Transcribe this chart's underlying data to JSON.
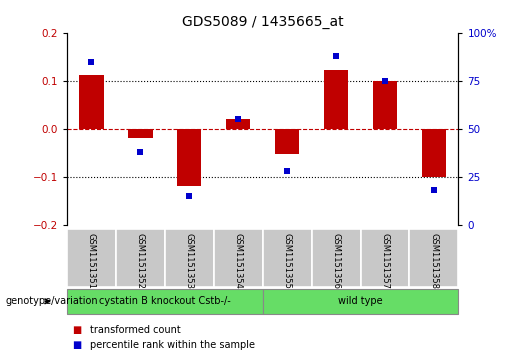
{
  "title": "GDS5089 / 1435665_at",
  "samples": [
    "GSM1151351",
    "GSM1151352",
    "GSM1151353",
    "GSM1151354",
    "GSM1151355",
    "GSM1151356",
    "GSM1151357",
    "GSM1151358"
  ],
  "transformed_count": [
    0.112,
    -0.018,
    -0.118,
    0.02,
    -0.052,
    0.122,
    0.1,
    -0.1
  ],
  "percentile_rank": [
    85,
    38,
    15,
    55,
    28,
    88,
    75,
    18
  ],
  "ylim_left": [
    -0.2,
    0.2
  ],
  "ylim_right": [
    0,
    100
  ],
  "yticks_left": [
    -0.2,
    -0.1,
    0.0,
    0.1,
    0.2
  ],
  "yticks_right": [
    0,
    25,
    50,
    75,
    100
  ],
  "group1_label": "cystatin B knockout Cstb-/-",
  "group2_label": "wild type",
  "genotype_label": "genotype/variation",
  "bar_color": "#c00000",
  "dot_color": "#0000cc",
  "group_color": "#66dd66",
  "tick_bg_color": "#c8c8c8",
  "legend_bar_label": "transformed count",
  "legend_dot_label": "percentile rank within the sample",
  "title_fontsize": 10,
  "tick_fontsize": 7.5,
  "label_fontsize": 7.5
}
